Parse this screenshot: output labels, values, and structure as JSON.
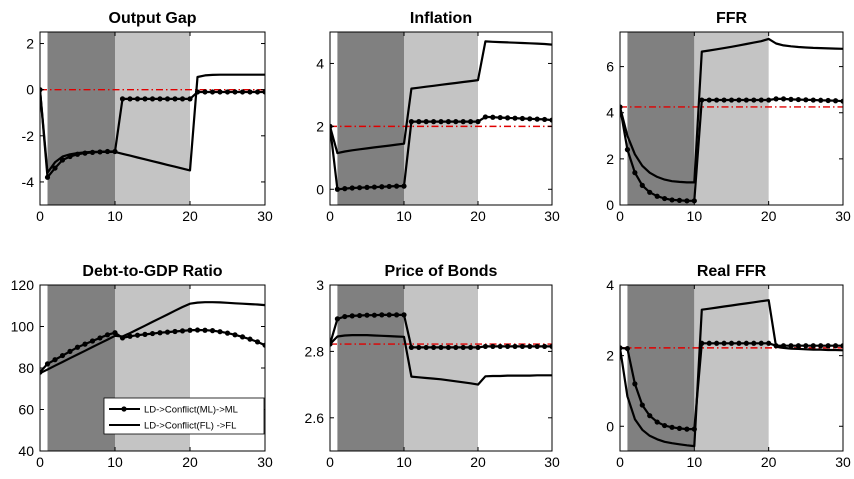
{
  "colors": {
    "phase1": "#808080",
    "phase2": "#c4c4c4",
    "axis": "#000000",
    "series": "#000000",
    "reference": "#e00000"
  },
  "legend": {
    "items": [
      {
        "label": "LD->Conflict(ML)->ML",
        "marker": "filled-circle"
      },
      {
        "label": "LD->Conflict(FL) ->FL",
        "marker": "none"
      }
    ]
  },
  "chart_data": [
    {
      "type": "line",
      "title": "Output Gap",
      "xlim": [
        0,
        30
      ],
      "ylim": [
        -5,
        2.5
      ],
      "xticks": [
        0,
        10,
        20,
        30
      ],
      "yticks": [
        2,
        0,
        -2,
        -4
      ],
      "shaded_regions": [
        {
          "x": [
            1,
            10
          ],
          "color": "dark-gray"
        },
        {
          "x": [
            10,
            20
          ],
          "color": "light-gray"
        }
      ],
      "reference_line": 0,
      "x": [
        0,
        1,
        2,
        3,
        4,
        5,
        6,
        7,
        8,
        9,
        10,
        11,
        12,
        13,
        14,
        15,
        16,
        17,
        18,
        19,
        20,
        21,
        22,
        23,
        24,
        25,
        26,
        27,
        28,
        29,
        30
      ],
      "series": [
        {
          "name": "LD->Conflict(ML)->ML",
          "marker": "filled-circle",
          "values": [
            0,
            -3.8,
            -3.4,
            -3.05,
            -2.9,
            -2.8,
            -2.75,
            -2.72,
            -2.7,
            -2.68,
            -2.68,
            -0.4,
            -0.4,
            -0.4,
            -0.4,
            -0.4,
            -0.4,
            -0.4,
            -0.4,
            -0.4,
            -0.4,
            -0.1,
            -0.1,
            -0.1,
            -0.1,
            -0.1,
            -0.1,
            -0.1,
            -0.1,
            -0.1,
            -0.1
          ]
        },
        {
          "name": "LD->Conflict(FL) ->FL",
          "marker": "none",
          "values": [
            0,
            -3.6,
            -3.15,
            -2.9,
            -2.8,
            -2.75,
            -2.72,
            -2.7,
            -2.7,
            -2.7,
            -2.7,
            -2.78,
            -2.86,
            -2.94,
            -3.02,
            -3.1,
            -3.18,
            -3.26,
            -3.34,
            -3.42,
            -3.5,
            0.55,
            0.62,
            0.64,
            0.65,
            0.65,
            0.65,
            0.65,
            0.65,
            0.65,
            0.65
          ]
        }
      ]
    },
    {
      "type": "line",
      "title": "Inflation",
      "xlim": [
        0,
        30
      ],
      "ylim": [
        -0.5,
        5
      ],
      "xticks": [
        0,
        10,
        20,
        30
      ],
      "yticks": [
        4,
        2,
        0
      ],
      "shaded_regions": [
        {
          "x": [
            1,
            10
          ],
          "color": "dark-gray"
        },
        {
          "x": [
            10,
            20
          ],
          "color": "light-gray"
        }
      ],
      "reference_line": 2,
      "x": [
        0,
        1,
        2,
        3,
        4,
        5,
        6,
        7,
        8,
        9,
        10,
        11,
        12,
        13,
        14,
        15,
        16,
        17,
        18,
        19,
        20,
        21,
        22,
        23,
        24,
        25,
        26,
        27,
        28,
        29,
        30
      ],
      "series": [
        {
          "name": "LD->Conflict(ML)->ML",
          "marker": "filled-circle",
          "values": [
            2,
            0,
            0.02,
            0.04,
            0.05,
            0.06,
            0.07,
            0.08,
            0.09,
            0.1,
            0.1,
            2.15,
            2.15,
            2.15,
            2.15,
            2.15,
            2.15,
            2.15,
            2.15,
            2.15,
            2.15,
            2.3,
            2.29,
            2.28,
            2.27,
            2.26,
            2.25,
            2.24,
            2.23,
            2.22,
            2.2
          ]
        },
        {
          "name": "LD->Conflict(FL) ->FL",
          "marker": "none",
          "values": [
            2,
            1.15,
            1.2,
            1.24,
            1.27,
            1.3,
            1.33,
            1.36,
            1.39,
            1.42,
            1.45,
            3.2,
            3.23,
            3.26,
            3.29,
            3.32,
            3.35,
            3.38,
            3.41,
            3.44,
            3.47,
            4.7,
            4.69,
            4.68,
            4.67,
            4.66,
            4.65,
            4.64,
            4.63,
            4.62,
            4.6
          ]
        }
      ]
    },
    {
      "type": "line",
      "title": "FFR",
      "xlim": [
        0,
        30
      ],
      "ylim": [
        0,
        7.5
      ],
      "xticks": [
        0,
        10,
        20,
        30
      ],
      "yticks": [
        6,
        4,
        2,
        0
      ],
      "shaded_regions": [
        {
          "x": [
            1,
            10
          ],
          "color": "dark-gray"
        },
        {
          "x": [
            10,
            20
          ],
          "color": "light-gray"
        }
      ],
      "reference_line": 4.25,
      "x": [
        0,
        1,
        2,
        3,
        4,
        5,
        6,
        7,
        8,
        9,
        10,
        11,
        12,
        13,
        14,
        15,
        16,
        17,
        18,
        19,
        20,
        21,
        22,
        23,
        24,
        25,
        26,
        27,
        28,
        29,
        30
      ],
      "series": [
        {
          "name": "LD->Conflict(ML)->ML",
          "marker": "filled-circle",
          "values": [
            4.25,
            2.4,
            1.4,
            0.85,
            0.55,
            0.38,
            0.28,
            0.22,
            0.2,
            0.18,
            0.18,
            4.55,
            4.55,
            4.55,
            4.55,
            4.55,
            4.55,
            4.55,
            4.55,
            4.55,
            4.55,
            4.6,
            4.6,
            4.58,
            4.57,
            4.56,
            4.55,
            4.54,
            4.53,
            4.52,
            4.5
          ]
        },
        {
          "name": "LD->Conflict(FL) ->FL",
          "marker": "none",
          "values": [
            4.25,
            3.0,
            2.2,
            1.7,
            1.4,
            1.22,
            1.1,
            1.03,
            1.0,
            0.98,
            0.98,
            6.65,
            6.7,
            6.75,
            6.8,
            6.86,
            6.92,
            6.98,
            7.04,
            7.1,
            7.2,
            7.0,
            6.92,
            6.88,
            6.85,
            6.83,
            6.81,
            6.8,
            6.79,
            6.78,
            6.77
          ]
        }
      ]
    },
    {
      "type": "line",
      "title": "Debt-to-GDP Ratio",
      "xlim": [
        0,
        30
      ],
      "ylim": [
        40,
        120
      ],
      "xticks": [
        0,
        10,
        20,
        30
      ],
      "yticks": [
        120,
        100,
        80,
        60,
        40
      ],
      "shaded_regions": [
        {
          "x": [
            1,
            10
          ],
          "color": "dark-gray"
        },
        {
          "x": [
            10,
            20
          ],
          "color": "light-gray"
        }
      ],
      "reference_line": null,
      "x": [
        0,
        1,
        2,
        3,
        4,
        5,
        6,
        7,
        8,
        9,
        10,
        11,
        12,
        13,
        14,
        15,
        16,
        17,
        18,
        19,
        20,
        21,
        22,
        23,
        24,
        25,
        26,
        27,
        28,
        29,
        30
      ],
      "series": [
        {
          "name": "LD->Conflict(ML)->ML",
          "marker": "filled-circle",
          "values": [
            78,
            82,
            84,
            86,
            88,
            90,
            91.5,
            93,
            94.5,
            96,
            97,
            94.5,
            95.3,
            95.8,
            96.2,
            96.6,
            97,
            97.3,
            97.6,
            97.9,
            98.2,
            98.3,
            98.2,
            98,
            97.5,
            96.8,
            96,
            95,
            93.9,
            92.6,
            91
          ]
        },
        {
          "name": "LD->Conflict(FL) ->FL",
          "marker": "none",
          "values": [
            77.5,
            79.3,
            81.1,
            82.9,
            84.7,
            86.5,
            88.3,
            90.1,
            91.9,
            93.7,
            95.5,
            95.2,
            96.8,
            98.6,
            100.4,
            102.2,
            104,
            105.8,
            107.6,
            109.4,
            111,
            111.5,
            111.7,
            111.7,
            111.6,
            111.4,
            111.2,
            111,
            110.8,
            110.6,
            110.3
          ]
        }
      ]
    },
    {
      "type": "line",
      "title": "Price of Bonds",
      "xlim": [
        0,
        30
      ],
      "ylim": [
        2.5,
        3
      ],
      "xticks": [
        0,
        10,
        20,
        30
      ],
      "yticks": [
        3,
        2.8,
        2.6
      ],
      "shaded_regions": [
        {
          "x": [
            1,
            10
          ],
          "color": "dark-gray"
        },
        {
          "x": [
            10,
            20
          ],
          "color": "light-gray"
        }
      ],
      "reference_line": 2.822,
      "x": [
        0,
        1,
        2,
        3,
        4,
        5,
        6,
        7,
        8,
        9,
        10,
        11,
        12,
        13,
        14,
        15,
        16,
        17,
        18,
        19,
        20,
        21,
        22,
        23,
        24,
        25,
        26,
        27,
        28,
        29,
        30
      ],
      "series": [
        {
          "name": "LD->Conflict(ML)->ML",
          "marker": "filled-circle",
          "values": [
            2.822,
            2.898,
            2.905,
            2.907,
            2.908,
            2.909,
            2.909,
            2.91,
            2.91,
            2.91,
            2.91,
            2.812,
            2.812,
            2.812,
            2.812,
            2.812,
            2.812,
            2.812,
            2.812,
            2.812,
            2.812,
            2.815,
            2.815,
            2.815,
            2.815,
            2.815,
            2.815,
            2.815,
            2.815,
            2.815,
            2.815
          ]
        },
        {
          "name": "LD->Conflict(FL) ->FL",
          "marker": "none",
          "values": [
            2.822,
            2.845,
            2.848,
            2.849,
            2.849,
            2.849,
            2.848,
            2.847,
            2.846,
            2.845,
            2.844,
            2.724,
            2.722,
            2.72,
            2.718,
            2.716,
            2.713,
            2.71,
            2.707,
            2.704,
            2.7,
            2.725,
            2.726,
            2.726,
            2.727,
            2.727,
            2.727,
            2.727,
            2.728,
            2.728,
            2.728
          ]
        }
      ]
    },
    {
      "type": "line",
      "title": "Real FFR",
      "xlim": [
        0,
        30
      ],
      "ylim": [
        -0.7,
        4
      ],
      "xticks": [
        0,
        10,
        20,
        30
      ],
      "yticks": [
        4,
        2,
        0
      ],
      "shaded_regions": [
        {
          "x": [
            1,
            10
          ],
          "color": "dark-gray"
        },
        {
          "x": [
            10,
            20
          ],
          "color": "light-gray"
        }
      ],
      "reference_line": 2.22,
      "x": [
        0,
        1,
        2,
        3,
        4,
        5,
        6,
        7,
        8,
        9,
        10,
        11,
        12,
        13,
        14,
        15,
        16,
        17,
        18,
        19,
        20,
        21,
        22,
        23,
        24,
        25,
        26,
        27,
        28,
        29,
        30
      ],
      "series": [
        {
          "name": "LD->Conflict(ML)->ML",
          "marker": "filled-circle",
          "values": [
            2.22,
            2.2,
            1.2,
            0.6,
            0.3,
            0.12,
            0.02,
            -0.03,
            -0.06,
            -0.08,
            -0.08,
            2.35,
            2.35,
            2.35,
            2.35,
            2.35,
            2.35,
            2.35,
            2.35,
            2.35,
            2.35,
            2.28,
            2.28,
            2.28,
            2.28,
            2.28,
            2.28,
            2.28,
            2.28,
            2.28,
            2.28
          ]
        },
        {
          "name": "LD->Conflict(FL) ->FL",
          "marker": "none",
          "values": [
            2.22,
            0.85,
            0.2,
            -0.1,
            -0.27,
            -0.37,
            -0.44,
            -0.48,
            -0.51,
            -0.54,
            -0.56,
            3.3,
            3.33,
            3.36,
            3.39,
            3.42,
            3.45,
            3.48,
            3.51,
            3.54,
            3.57,
            2.25,
            2.22,
            2.2,
            2.19,
            2.18,
            2.17,
            2.17,
            2.16,
            2.16,
            2.15
          ]
        }
      ]
    }
  ]
}
